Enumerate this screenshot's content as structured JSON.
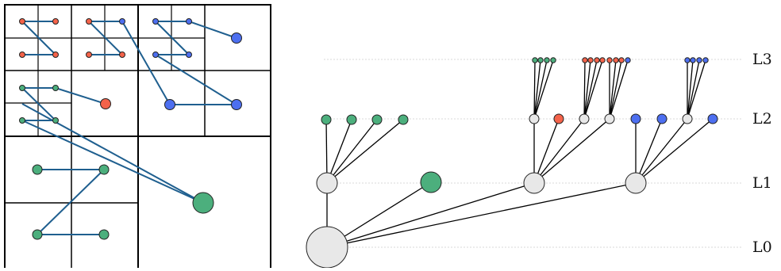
{
  "colors": {
    "green": "#4caf7d",
    "red": "#f4634a",
    "blue": "#4d6ff0",
    "internal_node": "#e8e8e8",
    "link": "#1f5f8f",
    "grid": "#d8d8d8"
  },
  "tree": {
    "levels": [
      {
        "id": "L0",
        "label": "L0"
      },
      {
        "id": "L1",
        "label": "L1"
      },
      {
        "id": "L2",
        "label": "L2"
      },
      {
        "id": "L3",
        "label": "L3"
      }
    ]
  }
}
